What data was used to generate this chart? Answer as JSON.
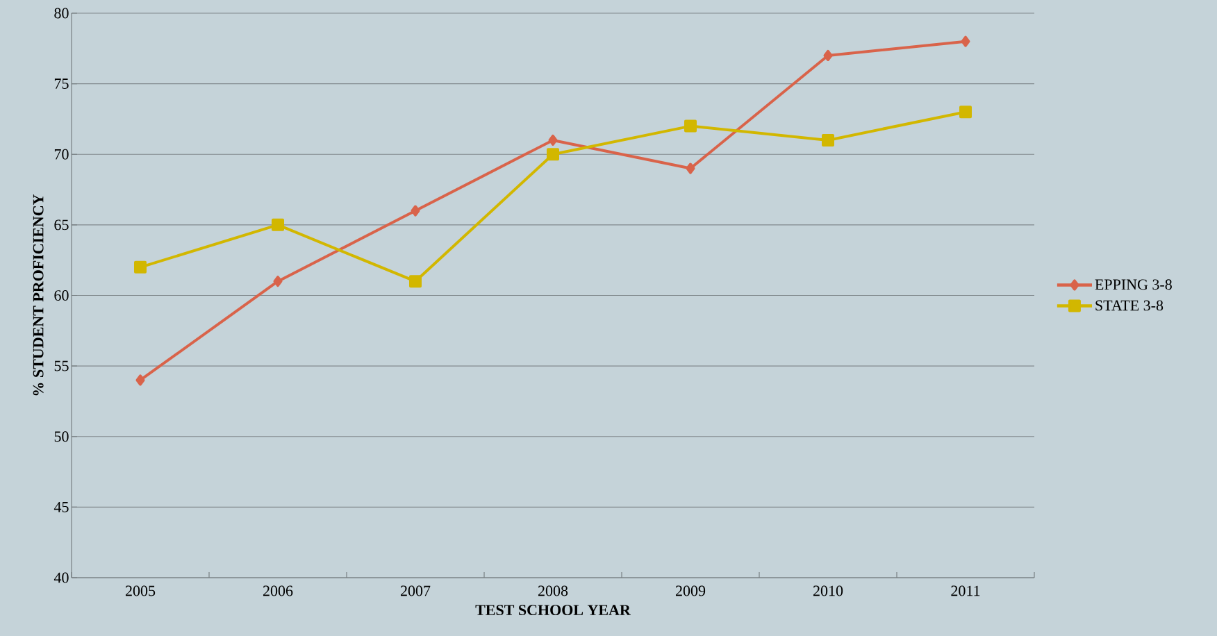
{
  "chart_data": {
    "type": "line",
    "xlabel": "TEST SCHOOL YEAR",
    "ylabel": "% STUDENT PROFICIENCY",
    "categories": [
      "2005",
      "2006",
      "2007",
      "2008",
      "2009",
      "2010",
      "2011"
    ],
    "series": [
      {
        "name": "EPPING 3-8",
        "color": "#d9634a",
        "marker": "diamond",
        "values": [
          54,
          61,
          66,
          71,
          69,
          77,
          78
        ]
      },
      {
        "name": "STATE 3-8",
        "color": "#d2b700",
        "marker": "square",
        "values": [
          62,
          65,
          61,
          70,
          72,
          71,
          73
        ]
      }
    ],
    "ylim": [
      40,
      80
    ],
    "yticks": [
      40,
      45,
      50,
      55,
      60,
      65,
      70,
      75,
      80
    ],
    "grid": "y",
    "legend": "right",
    "line_style": "solid"
  }
}
